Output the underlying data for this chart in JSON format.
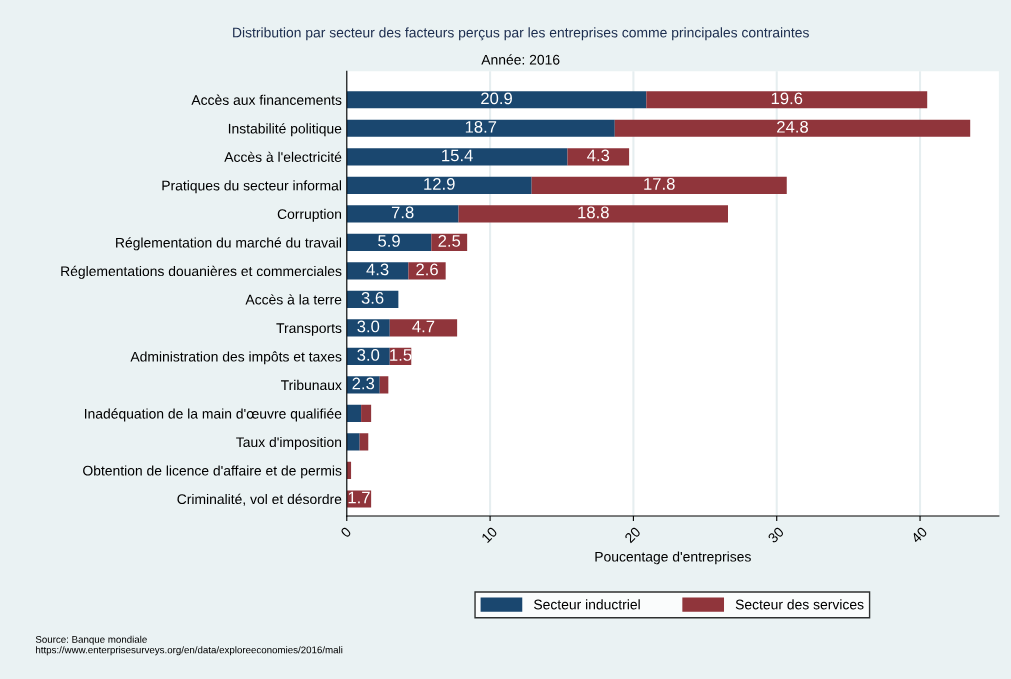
{
  "chart_data": {
    "type": "bar",
    "orientation": "horizontal",
    "stacked": true,
    "title": "Distribution par secteur des facteurs perçus par les entreprises comme principales contraintes",
    "subtitle": "Année: 2016",
    "xlabel": "Poucentage d'entreprises",
    "categories": [
      "Accès aux financements",
      "Instabilité politique",
      "Accès à l'electricité",
      "Pratiques du secteur informal",
      "Corruption",
      "Réglementation du marché du travail",
      "Réglementations douanières et commerciales",
      "Accès à la terre",
      "Transports",
      "Administration des impôts et taxes",
      "Tribunaux",
      "Inadéquation de la main d'œuvre qualifiée",
      "Taux d'imposition",
      "Obtention de licence d'affaire et de permis",
      "Criminalité, vol et désordre"
    ],
    "series": [
      {
        "name": "Secteur inductriel",
        "color": "#1a476f",
        "values": [
          20.9,
          18.7,
          15.4,
          12.9,
          7.8,
          5.9,
          4.3,
          3.6,
          3.0,
          3.0,
          2.3,
          1.0,
          0.9,
          0.0,
          0.0
        ],
        "value_labels": [
          "20.9",
          "18.7",
          "15.4",
          "12.9",
          "7.8",
          "5.9",
          "4.3",
          "3.6",
          "3.0",
          "3.0",
          "2.3",
          null,
          null,
          null,
          null
        ]
      },
      {
        "name": "Secteur des services",
        "color": "#90353b",
        "values": [
          19.6,
          24.8,
          4.3,
          17.8,
          18.8,
          2.5,
          2.6,
          0.0,
          4.7,
          1.5,
          0.6,
          0.7,
          0.6,
          0.3,
          1.7
        ],
        "value_labels": [
          "19.6",
          "24.8",
          "4.3",
          "17.8",
          "18.8",
          "2.5",
          "2.6",
          null,
          "4.7",
          "1.5",
          null,
          null,
          null,
          null,
          "1.7"
        ]
      }
    ],
    "xlim": [
      0,
      45.5
    ],
    "xticks": [
      0,
      10,
      20,
      30,
      40
    ],
    "grid": "x",
    "legend": "bottom",
    "annotations": [
      "Source: Banque mondiale\nhttps://www.enterprisesurveys.org/en/data/exploreeconomies/2016/mali"
    ]
  }
}
